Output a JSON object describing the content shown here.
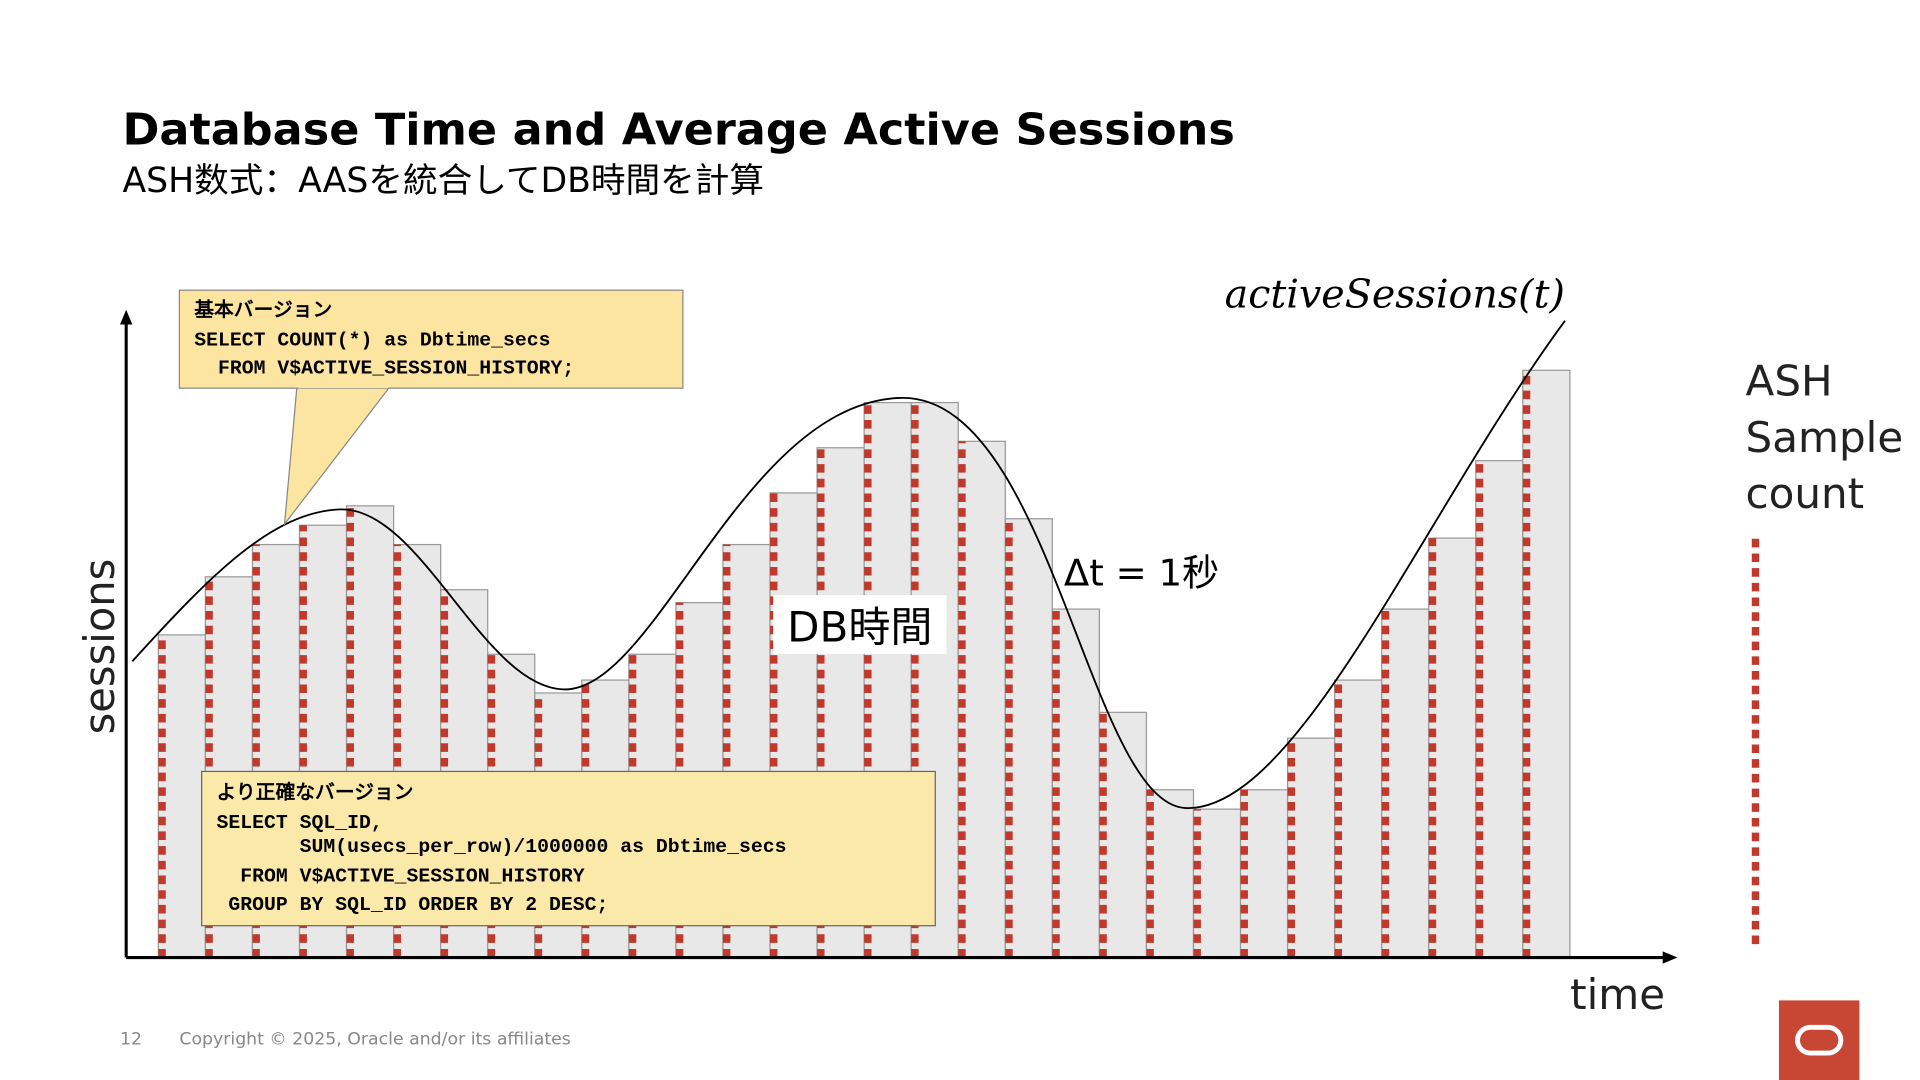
{
  "header": {
    "title": "Database Time and Average Active Sessions",
    "subtitle": "ASH数式：AASを統合してDB時間を計算"
  },
  "chart_data": {
    "type": "bar",
    "values": [
      50,
      59,
      64,
      67,
      70,
      64,
      57,
      47,
      41,
      43,
      47,
      55,
      64,
      72,
      79,
      86,
      86,
      80,
      68,
      54,
      38,
      26,
      23,
      26,
      34,
      43,
      54,
      65,
      77,
      91
    ],
    "ylim": [
      0,
      100
    ],
    "color": "#e8e8e8",
    "sample_color": "#c0392b",
    "x_label": "time",
    "y_label": "sessions",
    "curve_label": "activeSessions(t)",
    "delta_label": "Δt = 1秒",
    "area_label": "DB時間",
    "legend_label": [
      "ASH",
      "Sample",
      "count"
    ]
  },
  "callouts": [
    {
      "title": "基本バージョン",
      "lines": [
        "SELECT COUNT(*) as Dbtime_secs",
        "  FROM V$ACTIVE_SESSION_HISTORY;"
      ]
    },
    {
      "title": "より正確なバージョン",
      "lines": [
        "SELECT SQL_ID,",
        "       SUM(usecs_per_row)/1000000 as Dbtime_secs",
        "  FROM V$ACTIVE_SESSION_HISTORY",
        " GROUP BY SQL_ID ORDER BY 2 DESC;"
      ]
    }
  ],
  "footer": {
    "page": "12",
    "copyright": "Copyright © 2025, Oracle and/or its affiliates"
  }
}
